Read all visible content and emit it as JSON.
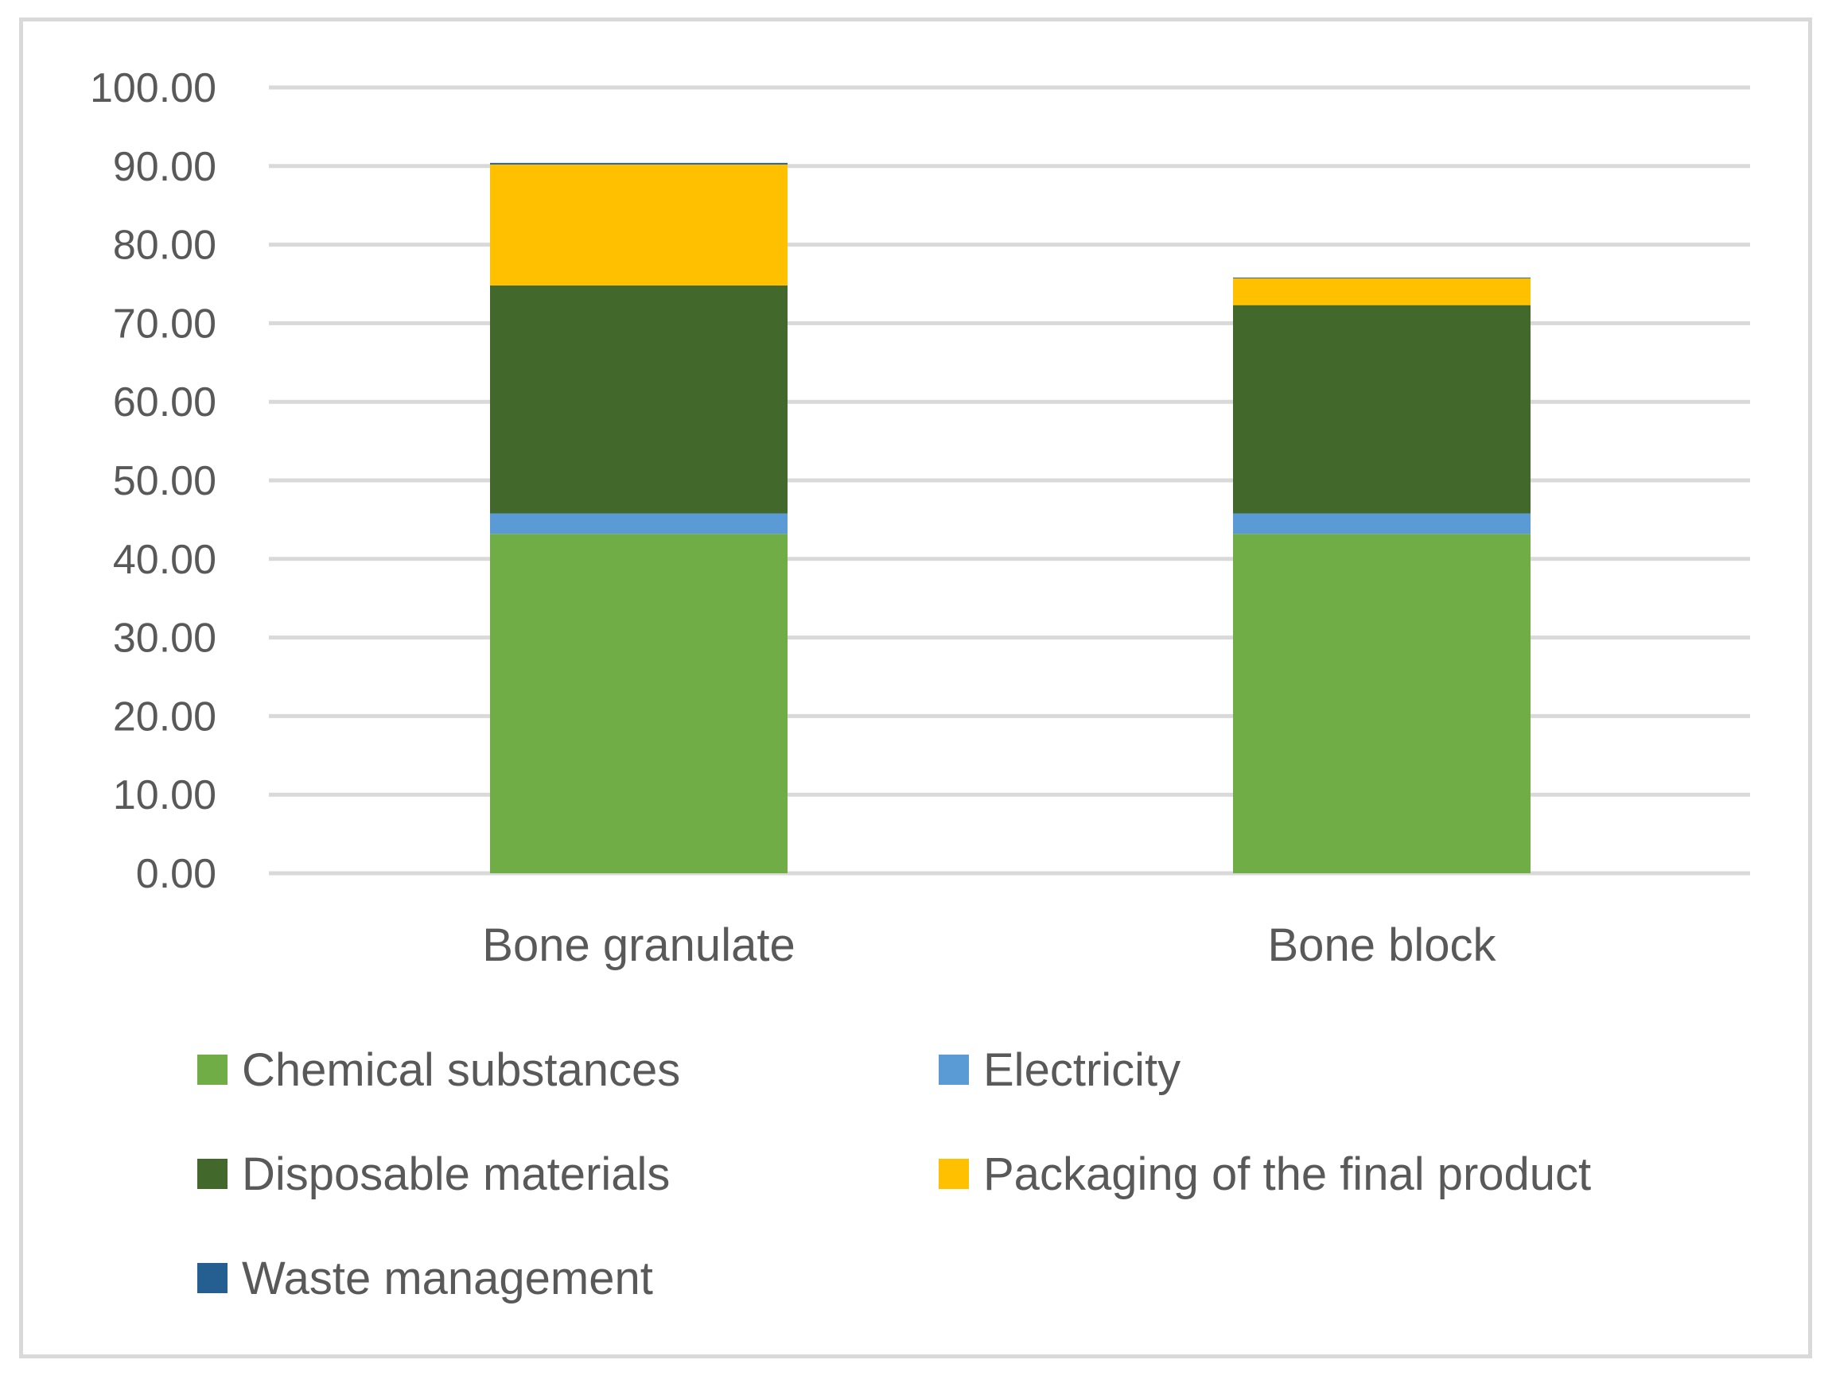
{
  "chart_data": {
    "type": "bar",
    "stacked": true,
    "categories": [
      "Bone granulate",
      "Bone block"
    ],
    "series": [
      {
        "name": "Chemical substances",
        "color": "#70ad47",
        "values": [
          43.2,
          43.2
        ]
      },
      {
        "name": "Electricity",
        "color": "#5b9bd5",
        "values": [
          2.6,
          2.6
        ]
      },
      {
        "name": "Disposable materials",
        "color": "#43682b",
        "values": [
          29.0,
          26.5
        ]
      },
      {
        "name": "Packaging of the final product",
        "color": "#ffc000",
        "values": [
          15.4,
          3.4
        ]
      },
      {
        "name": "Waste management",
        "color": "#255e91",
        "values": [
          0.2,
          0.1
        ]
      }
    ],
    "yticks": [
      "0.00",
      "10.00",
      "20.00",
      "30.00",
      "40.00",
      "50.00",
      "60.00",
      "70.00",
      "80.00",
      "90.00",
      "100.00"
    ],
    "ylim": [
      0,
      100
    ],
    "grid": true,
    "legend_position": "bottom",
    "title": "",
    "xlabel": "",
    "ylabel": ""
  }
}
